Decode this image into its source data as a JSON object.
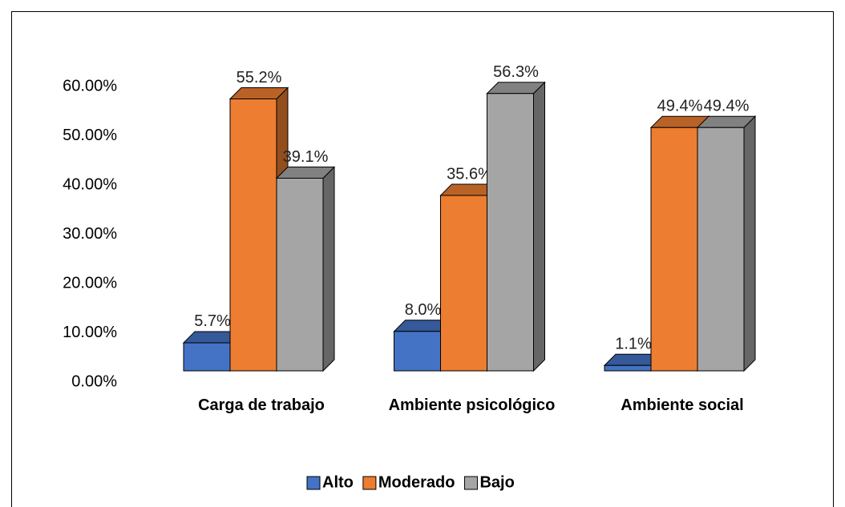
{
  "chart_data": {
    "type": "bar3d",
    "categories": [
      "Carga de trabajo",
      "Ambiente psicológico",
      "Ambiente social"
    ],
    "series": [
      {
        "name": "Alto",
        "color": "#4472c4",
        "values": [
          5.7,
          8.0,
          1.1
        ],
        "value_labels": [
          "5.7%",
          "8.0%",
          "1.1%"
        ]
      },
      {
        "name": "Moderado",
        "color": "#ed7d31",
        "values": [
          55.2,
          35.6,
          49.4
        ],
        "value_labels": [
          "55.2%",
          "35.6%",
          "49.4%"
        ]
      },
      {
        "name": "Bajo",
        "color": "#a5a5a5",
        "values": [
          39.1,
          56.3,
          49.4
        ],
        "value_labels": [
          "39.1%",
          "56.3%",
          "49.4%"
        ]
      }
    ],
    "ylim": [
      0,
      60
    ],
    "yticks": [
      {
        "value": 0,
        "label": "0.00%"
      },
      {
        "value": 10,
        "label": "10.00%"
      },
      {
        "value": 20,
        "label": "20.00%"
      },
      {
        "value": 30,
        "label": "30.00%"
      },
      {
        "value": 40,
        "label": "40.00%"
      },
      {
        "value": 50,
        "label": "50.00%"
      },
      {
        "value": 60,
        "label": "60.00%"
      }
    ],
    "legend": "bottom"
  }
}
